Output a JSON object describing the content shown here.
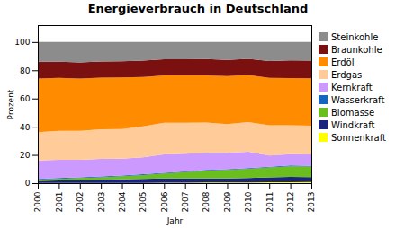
{
  "chart_data": {
    "type": "area",
    "stacked": true,
    "title": "Energieverbrauch in Deutschland",
    "xlabel": "Jahr",
    "ylabel": "Prozent",
    "x": [
      2000,
      2001,
      2002,
      2003,
      2004,
      2005,
      2006,
      2007,
      2008,
      2009,
      2010,
      2011,
      2012,
      2013
    ],
    "series": [
      {
        "name": "Sonnenkraft",
        "color": "#ffff00",
        "values": [
          0.1,
          0.1,
          0.1,
          0.1,
          0.2,
          0.2,
          0.3,
          0.3,
          0.4,
          0.4,
          0.5,
          0.6,
          0.7,
          0.8
        ]
      },
      {
        "name": "Windkraft",
        "color": "#1a237e",
        "values": [
          1.5,
          1.8,
          2.0,
          2.3,
          2.5,
          2.8,
          3.0,
          3.0,
          3.0,
          3.0,
          3.2,
          3.5,
          3.8,
          3.5
        ]
      },
      {
        "name": "Biomasse",
        "color": "#6abf1e",
        "values": [
          1.0,
          1.2,
          1.5,
          1.8,
          2.2,
          2.8,
          3.5,
          4.5,
          5.5,
          6.0,
          6.5,
          7.0,
          7.5,
          7.5
        ]
      },
      {
        "name": "Wasserkraft",
        "color": "#1565c0",
        "values": [
          0.5,
          0.5,
          0.5,
          0.5,
          0.5,
          0.5,
          0.5,
          0.5,
          0.5,
          0.5,
          0.5,
          0.5,
          0.5,
          0.5
        ]
      },
      {
        "name": "Kernkraft",
        "color": "#cc99ff",
        "values": [
          13.0,
          13.0,
          12.5,
          12.5,
          12.0,
          12.0,
          13.0,
          12.5,
          12.0,
          11.5,
          11.5,
          8.0,
          8.0,
          8.0
        ]
      },
      {
        "name": "Erdgas",
        "color": "#ffcc99",
        "values": [
          20.0,
          20.5,
          20.5,
          21.0,
          21.0,
          22.0,
          22.5,
          22.0,
          21.5,
          20.5,
          21.0,
          21.5,
          20.5,
          20.5
        ]
      },
      {
        "name": "Erdöl",
        "color": "#ff8c00",
        "values": [
          38.0,
          37.5,
          37.0,
          36.5,
          36.5,
          35.0,
          33.5,
          33.5,
          33.5,
          34.0,
          33.5,
          33.5,
          33.5,
          33.5
        ]
      },
      {
        "name": "Braunkohle",
        "color": "#7a1010",
        "values": [
          12.0,
          11.5,
          11.5,
          11.5,
          11.5,
          11.5,
          11.5,
          11.5,
          11.5,
          11.5,
          11.5,
          12.0,
          12.5,
          12.5
        ]
      },
      {
        "name": "Steinkohle",
        "color": "#8c8c8c",
        "values": [
          13.9,
          13.9,
          14.4,
          13.8,
          13.6,
          13.2,
          12.2,
          12.2,
          12.1,
          12.6,
          11.8,
          13.4,
          13.0,
          13.2
        ]
      }
    ],
    "xlim": [
      2000,
      2013
    ],
    "xticks": [
      2000,
      2001,
      2002,
      2003,
      2004,
      2005,
      2006,
      2007,
      2008,
      2009,
      2010,
      2011,
      2012,
      2013
    ],
    "ylim": [
      0,
      112
    ],
    "yticks": [
      0,
      20,
      40,
      60,
      80,
      100
    ],
    "grid": "y",
    "legend": "right"
  }
}
